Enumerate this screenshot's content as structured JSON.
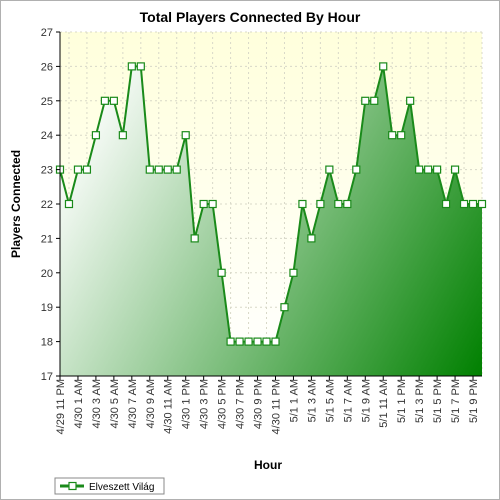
{
  "chart_data": {
    "type": "area",
    "title": "Total Players Connected By Hour",
    "xlabel": "Hour",
    "ylabel": "Players Connected",
    "ylim": [
      17,
      27
    ],
    "yticks": [
      17,
      18,
      19,
      20,
      21,
      22,
      23,
      24,
      25,
      26,
      27
    ],
    "grid": true,
    "legend_position": "bottom-left",
    "x_tick_labels": [
      "4/29 11 PM",
      "4/30 1 AM",
      "4/30 3 AM",
      "4/30 5 AM",
      "4/30 7 AM",
      "4/30 9 AM",
      "4/30 11 AM",
      "4/30 1 PM",
      "4/30 3 PM",
      "4/30 5 PM",
      "4/30 7 PM",
      "4/30 9 PM",
      "4/30 11 PM",
      "5/1 1 AM",
      "5/1 3 AM",
      "5/1 5 AM",
      "5/1 7 AM",
      "5/1 9 AM",
      "5/1 11 AM",
      "5/1 1 PM",
      "5/1 3 PM",
      "5/1 5 PM",
      "5/1 7 PM",
      "5/1 9 PM"
    ],
    "series": [
      {
        "name": "Elveszett Világ",
        "color": "#1a8a1a",
        "values": [
          23,
          22,
          23,
          23,
          24,
          25,
          25,
          24,
          26,
          26,
          23,
          23,
          23,
          23,
          24,
          21,
          22,
          22,
          20,
          18,
          18,
          18,
          18,
          18,
          18,
          19,
          20,
          22,
          21,
          22,
          23,
          22,
          22,
          23,
          25,
          25,
          26,
          24,
          24,
          25,
          23,
          23,
          23,
          22,
          23,
          22,
          22,
          22
        ]
      }
    ]
  },
  "colors": {
    "plot_top": "#ffffe0",
    "area_light": "#ffffff",
    "area_dark": "#008000",
    "line": "#1a8a1a"
  }
}
